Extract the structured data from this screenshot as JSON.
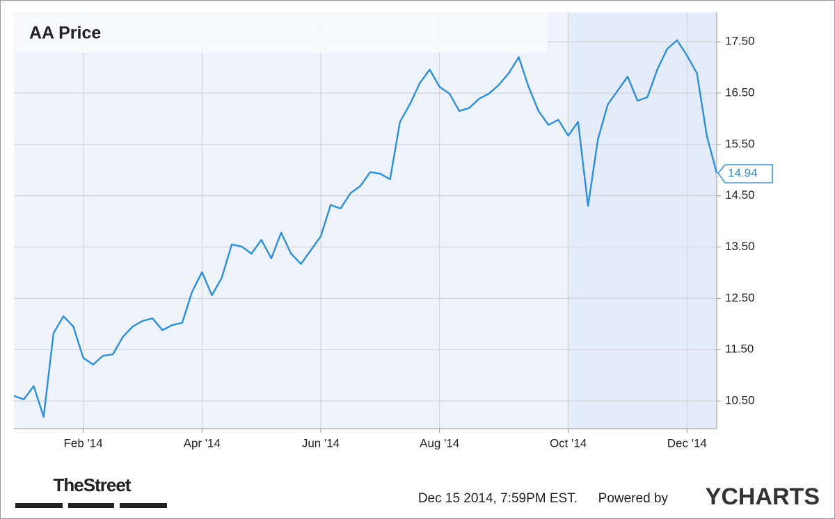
{
  "chart_data": {
    "type": "line",
    "title": "AA Price",
    "categories": [
      null,
      null,
      null,
      null,
      null,
      null,
      null,
      "Feb '14",
      null,
      null,
      null,
      null,
      null,
      null,
      null,
      null,
      null,
      null,
      null,
      "Apr '14",
      null,
      null,
      null,
      null,
      null,
      null,
      null,
      null,
      null,
      null,
      null,
      "Jun '14",
      null,
      null,
      null,
      null,
      null,
      null,
      null,
      null,
      null,
      null,
      null,
      "Aug '14",
      null,
      null,
      null,
      null,
      null,
      null,
      null,
      null,
      null,
      null,
      null,
      null,
      "Oct '14",
      null,
      null,
      null,
      null,
      null,
      null,
      null,
      null,
      null,
      null,
      null,
      "Dec '14",
      null,
      null,
      null
    ],
    "series": [
      {
        "name": "AA",
        "color": "#2a8fe0",
        "values": [
          10.6,
          10.53,
          10.79,
          10.19,
          11.82,
          12.15,
          11.95,
          11.34,
          11.21,
          11.38,
          11.41,
          11.75,
          11.95,
          12.06,
          12.11,
          11.88,
          11.98,
          12.02,
          12.63,
          13.01,
          12.56,
          12.9,
          13.55,
          13.51,
          13.37,
          13.64,
          13.28,
          13.78,
          13.37,
          13.17,
          13.44,
          13.71,
          14.32,
          14.25,
          14.55,
          14.69,
          14.96,
          14.93,
          14.82,
          15.94,
          16.28,
          16.69,
          16.96,
          16.62,
          16.49,
          16.15,
          16.21,
          16.39,
          16.49,
          16.66,
          16.89,
          17.2,
          16.62,
          16.15,
          15.88,
          15.98,
          15.67,
          15.94,
          14.3,
          15.6,
          16.28,
          16.55,
          16.82,
          16.35,
          16.42,
          16.96,
          17.36,
          17.53,
          17.23,
          16.89,
          15.67,
          14.94
        ]
      }
    ],
    "ylim": [
      9.96,
      18.07
    ],
    "yticks": [
      {
        "value": 10.5,
        "label": "10.50"
      },
      {
        "value": 11.5,
        "label": "11.50"
      },
      {
        "value": 12.5,
        "label": "12.50"
      },
      {
        "value": 13.5,
        "label": "13.50"
      },
      {
        "value": 14.5,
        "label": "14.50"
      },
      {
        "value": 15.5,
        "label": "15.50"
      },
      {
        "value": 16.5,
        "label": "16.50"
      },
      {
        "value": 17.5,
        "label": "17.50"
      }
    ],
    "grid": true,
    "logo": "TheStreet",
    "timestamp": "Dec 15 2014, 7:59PM EST.",
    "powered_by": "Powered by",
    "brand": "YCHARTS"
  }
}
